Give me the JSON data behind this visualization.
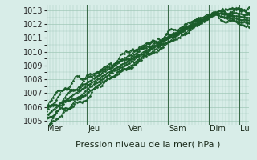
{
  "bg_color": "#d8ede8",
  "grid_color": "#a0c8b8",
  "line_color": "#1a5c2a",
  "xlabel": "Pression niveau de la mer( hPa )",
  "yticks": [
    1005,
    1006,
    1007,
    1008,
    1009,
    1010,
    1011,
    1012,
    1013
  ],
  "ylim": [
    1004.7,
    1013.4
  ],
  "day_labels": [
    "Mer",
    "Jeu",
    "Ven",
    "Sam",
    "Dim",
    "Lu"
  ],
  "day_positions": [
    0,
    24,
    48,
    72,
    96,
    114
  ],
  "xlim": [
    0,
    120
  ],
  "num_series": 7,
  "marker": "D",
  "marker_size": 1.5,
  "line_width": 0.7,
  "xlabel_fontsize": 8,
  "tick_fontsize": 7,
  "day_fontsize": 7
}
